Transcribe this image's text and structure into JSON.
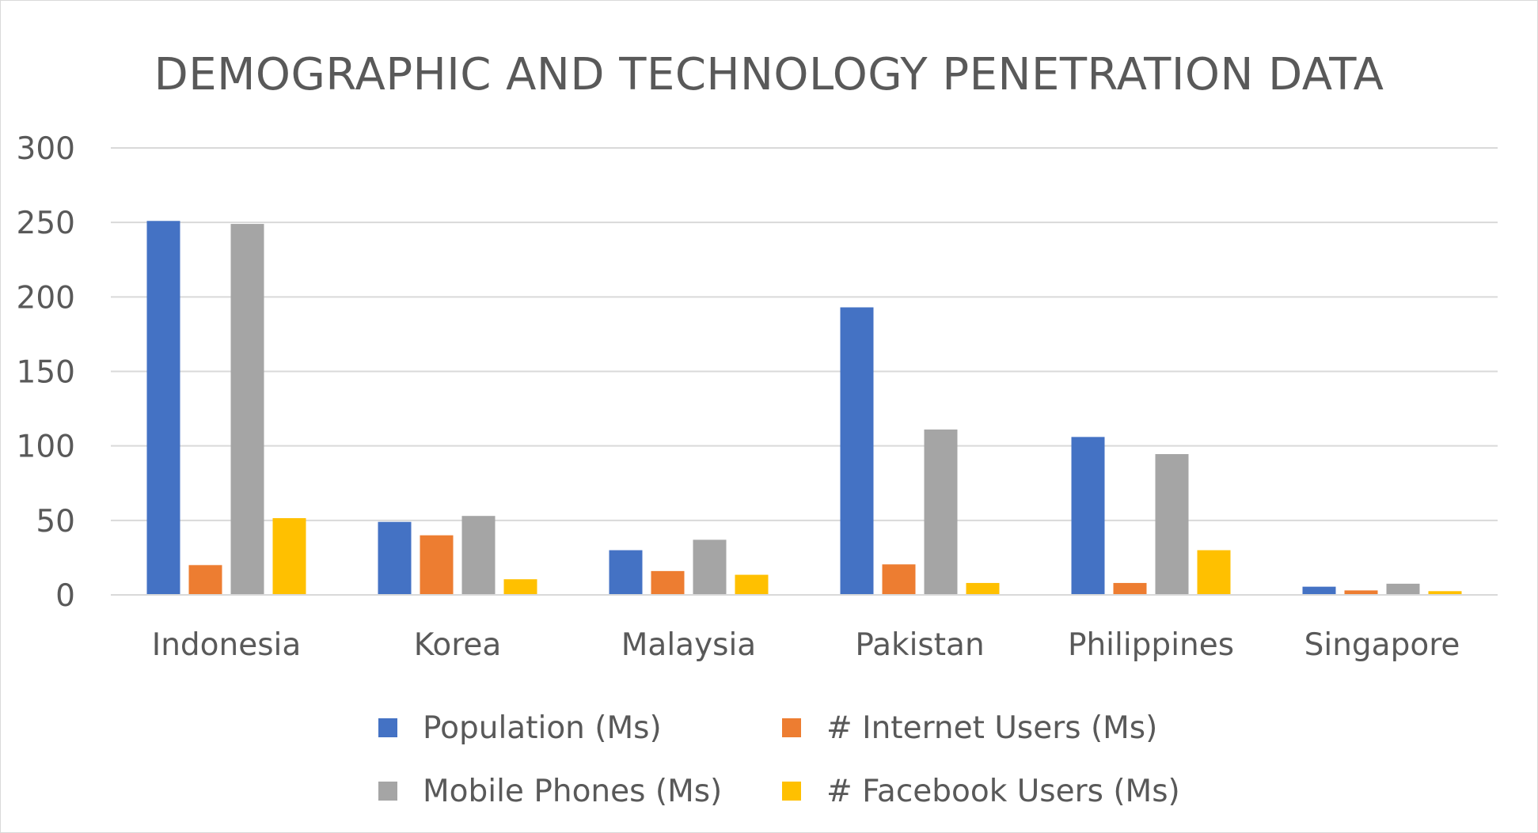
{
  "chart_data": {
    "type": "bar",
    "title": "DEMOGRAPHIC AND TECHNOLOGY PENETRATION DATA",
    "xlabel": "",
    "ylabel": "",
    "ylim": [
      0,
      300
    ],
    "yticks": [
      0,
      50,
      100,
      150,
      200,
      250,
      300
    ],
    "grid": true,
    "legend_position": "bottom",
    "categories": [
      "Indonesia",
      "Korea",
      "Malaysia",
      "Pakistan",
      "Philippines",
      "Singapore"
    ],
    "series": [
      {
        "name": "Population (Ms)",
        "color": "#4472C4",
        "values": [
          251,
          49,
          30,
          193,
          106,
          5.5
        ]
      },
      {
        "name": "# Internet Users (Ms)",
        "color": "#ED7D31",
        "values": [
          20,
          40,
          16,
          20.5,
          8,
          3
        ]
      },
      {
        "name": "Mobile Phones (Ms)",
        "color": "#A5A5A5",
        "values": [
          249,
          53,
          37,
          111,
          94.5,
          7.5
        ]
      },
      {
        "name": "# Facebook Users (Ms)",
        "color": "#FFC000",
        "values": [
          51.5,
          10.5,
          13.5,
          8,
          30,
          2.5
        ]
      }
    ]
  }
}
